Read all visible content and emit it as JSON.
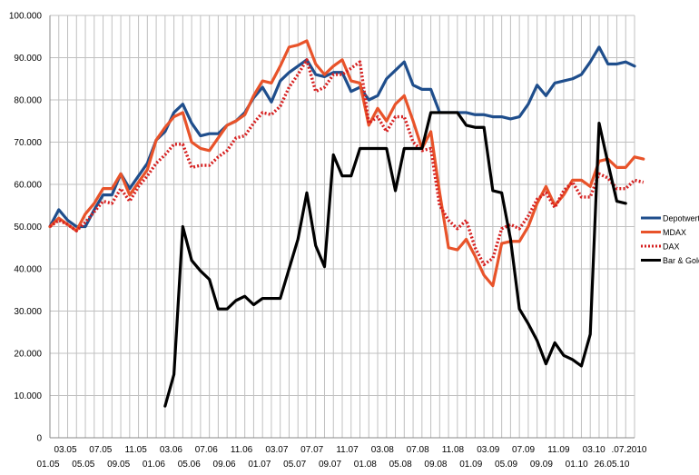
{
  "chart_data": {
    "type": "line",
    "title": "",
    "xlabel": "",
    "ylabel": "",
    "ylim": [
      0,
      100000
    ],
    "y_tick_labels": [
      "0",
      "10.000",
      "20.000",
      "30.000",
      "40.000",
      "50.000",
      "60.000",
      "70.000",
      "80.000",
      "90.000",
      "100.000"
    ],
    "x_labels_upper": [
      "03.05",
      "07.05",
      "11.05",
      "03.06",
      "07.06",
      "11.06",
      "03.07",
      "07.07",
      "11.07",
      "03.08",
      "07.08",
      "11.08",
      "03.09",
      "07.09",
      "11.09",
      "03.10",
      ".07.2010"
    ],
    "x_labels_lower": [
      "01.05",
      "05.05",
      "09.05",
      "01.06",
      "05.06",
      "09.06",
      "01.07",
      "05.07",
      "09.07",
      "01.08",
      "05.08",
      "09.08",
      "01.09",
      "05.09",
      "09.09",
      "01.10",
      "26.05.10"
    ],
    "legend_position": "right",
    "colors": {
      "depotwert": "#1f4e8c",
      "mdax": "#e8532a",
      "dax": "#d62020",
      "bar_gold": "#000000",
      "grid": "#c0c0c0"
    },
    "series": [
      {
        "name": "Depotwert",
        "style": "solid",
        "values": [
          50000,
          54000,
          51500,
          50000,
          50000,
          54000,
          57500,
          57500,
          62500,
          59000,
          62000,
          65000,
          70500,
          72500,
          77000,
          79000,
          74500,
          71500,
          72000,
          72000,
          74000,
          75000,
          77000,
          80500,
          83000,
          79500,
          84500,
          86500,
          88000,
          89500,
          86000,
          85500,
          86500,
          86500,
          82000,
          83000,
          80000,
          81000,
          85000,
          87000,
          89000,
          83500,
          82500,
          82500,
          77000,
          77000,
          77000,
          77000,
          76500,
          76500,
          76000,
          76000,
          75500,
          76000,
          79000,
          83500,
          81000,
          84000,
          84500,
          85000,
          86000,
          89000,
          92500,
          88500,
          88500,
          89000,
          88000
        ]
      },
      {
        "name": "MDAX",
        "style": "solid",
        "values": [
          50000,
          52000,
          50500,
          49000,
          53000,
          55500,
          59000,
          59000,
          62500,
          57500,
          60500,
          63500,
          70500,
          73500,
          76000,
          77000,
          70000,
          68500,
          68000,
          71000,
          74000,
          75000,
          76500,
          81000,
          84500,
          84000,
          88000,
          92500,
          93000,
          94000,
          88500,
          86000,
          88000,
          89500,
          84500,
          84000,
          74000,
          78000,
          75000,
          79000,
          81000,
          75000,
          68500,
          72500,
          58000,
          45000,
          44500,
          47000,
          43000,
          38500,
          36000,
          46000,
          46500,
          46500,
          50000,
          55500,
          59500,
          55000,
          57500,
          61000,
          61000,
          59500,
          65500,
          66000,
          64000,
          64000,
          66500,
          66000
        ]
      },
      {
        "name": "DAX",
        "style": "dotted",
        "values": [
          50000,
          51500,
          50500,
          49000,
          51000,
          53500,
          56000,
          55500,
          59000,
          56000,
          59500,
          62000,
          65000,
          67000,
          69500,
          69500,
          64000,
          64500,
          64500,
          66500,
          68000,
          71000,
          71500,
          74500,
          77000,
          76500,
          78500,
          83000,
          86000,
          89500,
          82000,
          83000,
          86000,
          86000,
          87500,
          89000,
          74500,
          76000,
          72500,
          76000,
          76000,
          70000,
          68000,
          68500,
          55000,
          51500,
          49500,
          51500,
          45000,
          41000,
          42500,
          49500,
          50500,
          49500,
          52500,
          56500,
          58000,
          54500,
          58500,
          60500,
          57000,
          57000,
          62500,
          61500,
          59000,
          59000,
          61000,
          60500
        ]
      },
      {
        "name": "Bar & Gold",
        "style": "solid",
        "values": [
          null,
          null,
          null,
          null,
          null,
          null,
          null,
          null,
          null,
          null,
          null,
          null,
          null,
          7500,
          15000,
          50000,
          42000,
          39500,
          37500,
          30500,
          30500,
          32500,
          33500,
          31500,
          33000,
          33000,
          33000,
          40000,
          47000,
          58000,
          45500,
          40500,
          67000,
          62000,
          62000,
          68500,
          68500,
          68500,
          68500,
          58500,
          68500,
          68500,
          68500,
          77000,
          77000,
          77000,
          77000,
          74000,
          73500,
          73500,
          58500,
          58000,
          47000,
          30500,
          27000,
          23000,
          17500,
          22500,
          19500,
          18500,
          17000,
          24500,
          74500,
          65000,
          56000,
          55500
        ]
      }
    ]
  }
}
